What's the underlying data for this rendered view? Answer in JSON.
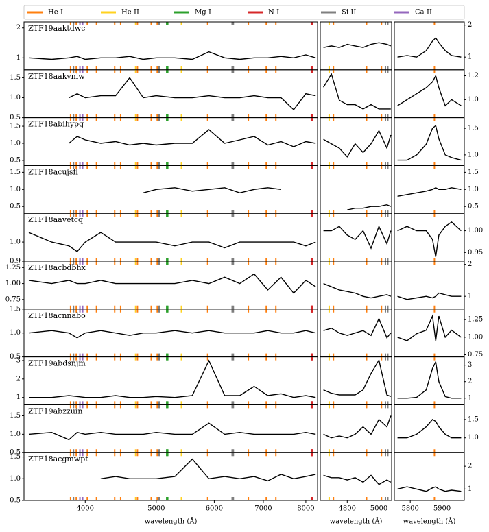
{
  "chart_data": {
    "type": "line",
    "legend": [
      {
        "name": "He-I",
        "color": "#ff7f0e",
        "wavelengths": [
          3820,
          3889,
          4026,
          4144,
          4388,
          4471,
          4713,
          4922,
          5016,
          5876,
          6678,
          7065,
          7281
        ]
      },
      {
        "name": "He-II",
        "color": "#ffd21f",
        "wavelengths": [
          4686,
          5412
        ]
      },
      {
        "name": "Mg-I",
        "color": "#2ca02c",
        "wavelengths": [
          5167,
          5173,
          5184
        ]
      },
      {
        "name": "N-I",
        "color": "#d62728",
        "wavelengths": [
          8140,
          8150,
          8160,
          8170
        ]
      },
      {
        "name": "Si-II",
        "color": "#7f7f7f",
        "wavelengths": [
          3856,
          5041,
          5056,
          6347,
          6371
        ]
      },
      {
        "name": "Ca-II",
        "color": "#9467bd",
        "wavelengths": [
          3934,
          3968
        ]
      }
    ],
    "columns": [
      {
        "xlabel": "wavelength (Å)",
        "xscale": "log",
        "xlim": [
          3300,
          8300
        ],
        "xticks": [
          4000,
          5000,
          6000,
          7000,
          8000
        ],
        "x": [
          3350,
          3600,
          3800,
          3900,
          4000,
          4200,
          4400,
          4600,
          4800,
          5000,
          5300,
          5600,
          5900,
          6200,
          6500,
          6800,
          7100,
          7400,
          7700,
          8000,
          8250
        ]
      },
      {
        "xlabel": "wavelength (Å)",
        "xscale": "linear",
        "xlim": [
          4630,
          5080
        ],
        "xticks": [
          4800,
          5000
        ],
        "x": [
          4650,
          4700,
          4750,
          4800,
          4850,
          4900,
          4950,
          5000,
          5050,
          5075
        ]
      },
      {
        "xlabel": "wavelength (Å)",
        "xscale": "linear",
        "xlim": [
          5750,
          5970
        ],
        "xticks": [
          5800,
          5900
        ],
        "x": [
          5760,
          5790,
          5820,
          5850,
          5870,
          5880,
          5890,
          5910,
          5930,
          5960
        ]
      }
    ],
    "rows": [
      {
        "name": "ZTF19aaktdwc",
        "panels": [
          {
            "ylim": [
              0.6,
              2.2
            ],
            "yticks": [
              1,
              2
            ],
            "values": [
              1.0,
              0.95,
              1.0,
              1.05,
              0.95,
              1.0,
              1.0,
              1.05,
              0.95,
              1.0,
              1.0,
              0.95,
              1.2,
              1.0,
              0.95,
              1.0,
              1.0,
              1.05,
              1.0,
              1.1,
              1.0
            ]
          },
          {
            "ylim": [
              0.6,
              2.1
            ],
            "values": [
              1.3,
              1.35,
              1.3,
              1.4,
              1.35,
              1.3,
              1.4,
              1.45,
              1.4,
              1.35
            ]
          },
          {
            "ylim": [
              0.6,
              2.1
            ],
            "yticks": [
              1,
              2
            ],
            "values": [
              1.0,
              1.05,
              1.0,
              1.2,
              1.5,
              1.6,
              1.45,
              1.2,
              1.05,
              1.0
            ]
          }
        ]
      },
      {
        "name": "ZTF18aakvnlw",
        "panels": [
          {
            "ylim": [
              0.5,
              1.7
            ],
            "yticks": [
              {
                "value": 0.5,
                "label": "0.5"
              },
              {
                "value": 1,
                "label": "1.0"
              },
              {
                "value": 1.5,
                "label": "1.5"
              }
            ],
            "values": [
              null,
              null,
              1.0,
              1.1,
              1.0,
              1.05,
              1.05,
              1.5,
              1.0,
              1.05,
              1.0,
              1.0,
              1.05,
              1.0,
              1.0,
              1.05,
              1.0,
              1.0,
              0.7,
              1.1,
              1.05
            ]
          },
          {
            "ylim": [
              0.7,
              1.25
            ],
            "values": [
              1.05,
              1.2,
              0.9,
              0.85,
              0.85,
              0.8,
              0.85,
              0.8,
              0.8,
              0.8
            ]
          },
          {
            "ylim": [
              0.85,
              1.25
            ],
            "yticks": [
              {
                "value": 1,
                "label": "1.0"
              },
              {
                "value": 1.2,
                "label": "1.2"
              }
            ],
            "values": [
              0.95,
              1.0,
              1.05,
              1.1,
              1.15,
              1.2,
              1.1,
              0.95,
              1.0,
              0.95
            ]
          }
        ]
      },
      {
        "name": "ZTF18abihypg",
        "panels": [
          {
            "ylim": [
              0.35,
              1.75
            ],
            "yticks": [
              {
                "value": 0.5,
                "label": "0.5"
              },
              {
                "value": 1,
                "label": "1.0"
              },
              {
                "value": 1.5,
                "label": "1.5"
              }
            ],
            "values": [
              null,
              null,
              1.0,
              1.2,
              1.1,
              1.0,
              1.05,
              0.95,
              1.0,
              0.95,
              1.0,
              1.0,
              1.4,
              1.0,
              1.1,
              1.2,
              0.95,
              1.05,
              0.9,
              1.05,
              1.0
            ]
          },
          {
            "ylim": [
              0.6,
              1.7
            ],
            "values": [
              1.2,
              1.1,
              1.0,
              0.8,
              1.1,
              0.9,
              1.1,
              1.4,
              1.0,
              1.3
            ]
          },
          {
            "ylim": [
              0.8,
              1.7
            ],
            "yticks": [
              {
                "value": 1,
                "label": "1.0"
              },
              {
                "value": 1.5,
                "label": "1.5"
              }
            ],
            "values": [
              0.9,
              0.9,
              1.0,
              1.2,
              1.5,
              1.55,
              1.3,
              1.0,
              0.95,
              0.9
            ]
          }
        ]
      },
      {
        "name": "ZTF18acujsfl",
        "panels": [
          {
            "ylim": [
              0.3,
              1.7
            ],
            "yticks": [
              {
                "value": 0.5,
                "label": "0.5"
              },
              {
                "value": 1,
                "label": "1.0"
              },
              {
                "value": 1.5,
                "label": "1.5"
              }
            ],
            "values": [
              null,
              null,
              null,
              null,
              null,
              null,
              null,
              null,
              0.9,
              1.0,
              1.05,
              0.95,
              1.0,
              1.05,
              0.9,
              1.0,
              1.05,
              1.0,
              null,
              null,
              null
            ]
          },
          {
            "ylim": [
              0.3,
              1.7
            ],
            "values": [
              null,
              null,
              null,
              0.4,
              0.45,
              0.45,
              0.5,
              0.5,
              0.55,
              0.5
            ]
          },
          {
            "ylim": [
              0.3,
              1.7
            ],
            "yticks": [
              {
                "value": 0.5,
                "label": "0.5"
              },
              {
                "value": 1,
                "label": "1.0"
              },
              {
                "value": 1.5,
                "label": "1.5"
              }
            ],
            "values": [
              0.8,
              0.85,
              0.9,
              0.95,
              1.0,
              1.05,
              1.0,
              1.0,
              1.05,
              1.0
            ]
          }
        ]
      },
      {
        "name": "ZTF18aavetcq",
        "panels": [
          {
            "ylim": [
              0.9,
              1.15
            ],
            "yticks": [
              {
                "value": 0.9,
                "label": "0.9"
              },
              {
                "value": 1,
                "label": "1.0"
              }
            ],
            "values": [
              1.05,
              1.0,
              0.98,
              0.95,
              1.0,
              1.05,
              1.0,
              1.0,
              1.0,
              1.0,
              0.98,
              1.0,
              1.0,
              0.97,
              1.0,
              1.0,
              1.0,
              1.0,
              1.0,
              0.98,
              1.0
            ]
          },
          {
            "ylim": [
              0.93,
              1.04
            ],
            "values": [
              1.0,
              1.0,
              1.01,
              0.99,
              0.98,
              1.0,
              0.96,
              1.01,
              0.97,
              1.0
            ]
          },
          {
            "ylim": [
              0.93,
              1.04
            ],
            "yticks": [
              {
                "value": 0.95,
                "label": "0.95"
              },
              {
                "value": 1,
                "label": "1.00"
              }
            ],
            "values": [
              1.0,
              1.01,
              1.0,
              1.0,
              0.98,
              0.94,
              0.99,
              1.01,
              1.02,
              1.0
            ]
          }
        ]
      },
      {
        "name": "ZTF18acbdbhx",
        "panels": [
          {
            "ylim": [
              0.6,
              1.35
            ],
            "yticks": [
              {
                "value": 0.75,
                "label": "0.75"
              },
              {
                "value": 1,
                "label": "1.00"
              },
              {
                "value": 1.25,
                "label": "1.25"
              }
            ],
            "values": [
              1.05,
              1.0,
              1.05,
              1.0,
              1.0,
              1.05,
              1.0,
              1.0,
              1.0,
              1.0,
              1.0,
              1.05,
              1.0,
              1.1,
              1.0,
              1.15,
              0.9,
              1.1,
              0.85,
              1.05,
              0.95
            ]
          },
          {
            "ylim": [
              0.6,
              2.1
            ],
            "values": [
              1.4,
              1.3,
              1.2,
              1.15,
              1.1,
              1.0,
              0.95,
              1.0,
              1.05,
              1.0
            ]
          },
          {
            "ylim": [
              0.6,
              2.1
            ],
            "yticks": [
              1,
              2
            ],
            "values": [
              1.0,
              0.9,
              0.95,
              1.0,
              0.95,
              1.0,
              1.1,
              1.05,
              1.0,
              1.0
            ]
          }
        ]
      },
      {
        "name": "ZTF18acnnabo",
        "panels": [
          {
            "ylim": [
              0.5,
              1.5
            ],
            "yticks": [
              {
                "value": 0.5,
                "label": "0.5"
              },
              {
                "value": 1,
                "label": "1.0"
              },
              {
                "value": 1.5,
                "label": "1.5"
              }
            ],
            "values": [
              1.0,
              1.05,
              1.0,
              0.9,
              1.0,
              1.05,
              1.0,
              0.95,
              1.0,
              1.0,
              1.05,
              1.0,
              1.05,
              1.0,
              1.0,
              1.0,
              1.05,
              1.0,
              1.0,
              1.05,
              1.0
            ]
          },
          {
            "ylim": [
              0.5,
              1.5
            ],
            "values": [
              1.05,
              1.1,
              1.0,
              0.95,
              1.0,
              1.05,
              0.95,
              1.3,
              0.9,
              1.0
            ]
          },
          {
            "ylim": [
              0.72,
              1.4
            ],
            "yticks": [
              {
                "value": 0.75,
                "label": "0.75"
              },
              {
                "value": 1,
                "label": "1.00"
              },
              {
                "value": 1.25,
                "label": "1.25"
              }
            ],
            "values": [
              1.0,
              0.95,
              1.05,
              1.1,
              1.3,
              0.95,
              1.3,
              1.0,
              1.1,
              1.0
            ]
          }
        ]
      },
      {
        "name": "ZTF19abdsnjm",
        "panels": [
          {
            "ylim": [
              0.6,
              3.2
            ],
            "yticks": [
              1,
              2,
              3
            ],
            "values": [
              1.0,
              1.0,
              1.1,
              1.05,
              1.0,
              1.0,
              1.1,
              1.0,
              1.0,
              1.05,
              1.0,
              1.1,
              3.0,
              1.1,
              1.1,
              1.6,
              1.1,
              1.2,
              1.0,
              1.1,
              1.0
            ]
          },
          {
            "ylim": [
              0.6,
              3.5
            ],
            "values": [
              1.5,
              1.3,
              1.2,
              1.2,
              1.2,
              1.5,
              2.5,
              3.3,
              1.2,
              1.1
            ]
          },
          {
            "ylim": [
              0.6,
              3.5
            ],
            "yticks": [
              1,
              2,
              3
            ],
            "values": [
              1.0,
              1.0,
              1.05,
              1.5,
              2.8,
              3.2,
              2.0,
              1.1,
              1.0,
              1.0
            ]
          }
        ]
      },
      {
        "name": "ZTF19abzzuin",
        "panels": [
          {
            "ylim": [
              0.5,
              1.8
            ],
            "yticks": [
              {
                "value": 0.5,
                "label": "0.5"
              },
              {
                "value": 1,
                "label": "1.0"
              },
              {
                "value": 1.5,
                "label": "1.5"
              }
            ],
            "values": [
              1.0,
              1.05,
              0.85,
              1.05,
              1.0,
              1.05,
              1.0,
              1.0,
              1.0,
              1.05,
              1.0,
              1.0,
              1.3,
              1.0,
              1.05,
              1.0,
              1.0,
              1.0,
              1.0,
              1.05,
              1.0
            ]
          },
          {
            "ylim": [
              0.6,
              1.9
            ],
            "values": [
              1.1,
              1.0,
              1.05,
              1.0,
              1.1,
              1.3,
              1.1,
              1.5,
              1.3,
              1.6
            ]
          },
          {
            "ylim": [
              0.6,
              1.9
            ],
            "yticks": [
              {
                "value": 1,
                "label": "1.0"
              },
              {
                "value": 1.5,
                "label": "1.5"
              }
            ],
            "values": [
              1.0,
              1.0,
              1.1,
              1.3,
              1.5,
              1.45,
              1.3,
              1.1,
              1.0,
              1.0
            ]
          }
        ]
      },
      {
        "name": "ZTF18acgmwpt",
        "panels": [
          {
            "ylim": [
              0.5,
              1.6
            ],
            "yticks": [
              {
                "value": 0.5,
                "label": "0.5"
              },
              {
                "value": 1,
                "label": "1.0"
              },
              {
                "value": 1.5,
                "label": "1.5"
              }
            ],
            "values": [
              null,
              null,
              null,
              null,
              null,
              1.0,
              1.05,
              1.0,
              1.0,
              1.0,
              1.05,
              1.45,
              1.0,
              1.05,
              1.0,
              1.05,
              0.95,
              1.1,
              1.0,
              1.05,
              1.1
            ]
          },
          {
            "ylim": [
              0.5,
              2.6
            ],
            "values": [
              1.6,
              1.5,
              1.5,
              1.4,
              1.5,
              1.3,
              1.6,
              1.2,
              1.4,
              1.3
            ]
          },
          {
            "ylim": [
              0.5,
              2.6
            ],
            "yticks": [
              1,
              2
            ],
            "values": [
              1.0,
              1.1,
              1.0,
              0.9,
              1.05,
              1.1,
              1.0,
              0.9,
              0.95,
              0.9
            ]
          }
        ]
      }
    ]
  }
}
